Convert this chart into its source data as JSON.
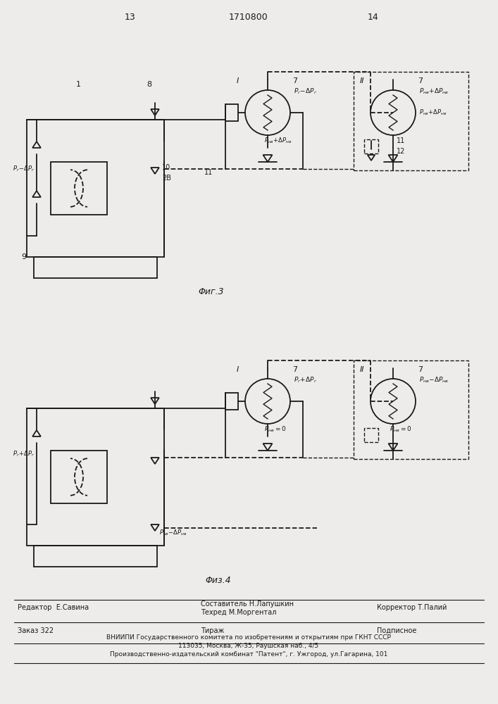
{
  "bg_color": "#edecea",
  "line_color": "#1a1a1a",
  "fig3_caption": "Φиг.3",
  "fig4_caption": "Φиз.4",
  "page_num_left": "13",
  "page_num_center": "1710800",
  "page_num_right": "14",
  "footer_line1_left": "Редактор  Е.Савина",
  "footer_line1_center1": "Составитель Н.Лапушкин",
  "footer_line1_center2": "Техред М.Моргентал",
  "footer_line1_right": "Корректор Т.Палий",
  "footer_line2_left": "Заказ 322",
  "footer_line2_center": "Тираж",
  "footer_line2_right": "Подписное",
  "footer_line3": "ВНИИПИ Государственного комитета по изобретениям и открытиям при ГКНТ СССР",
  "footer_line4": "113035, Москва, Ж-35, Раушская наб., 4/5",
  "footer_line5": "Производственно-издательский комбинат \"Патент\", г. Ужгород, ул.Гагарина, 101"
}
